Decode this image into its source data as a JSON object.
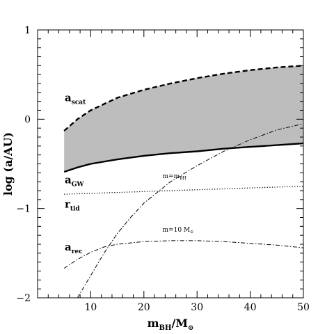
{
  "chart_data": {
    "type": "line",
    "xlabel": {
      "main": "m",
      "sub": "BH",
      "rest": "/M",
      "sub2": "⊙"
    },
    "ylabel": "log (a/AU)",
    "xlim": [
      0,
      50
    ],
    "ylim": [
      -2,
      1
    ],
    "x_ticks": [
      "10",
      "20",
      "30",
      "40",
      "50"
    ],
    "y_ticks": [
      "1",
      "0",
      "−1",
      "−2"
    ],
    "grid": false,
    "shaded_region": {
      "between": [
        "a_scat",
        "a_GW"
      ],
      "color": "#bdbdbd"
    },
    "series": [
      {
        "key": "a_scat",
        "label": {
          "main": "a",
          "sub": "scat"
        },
        "style": "dashed-thick",
        "x": [
          5,
          7.5,
          10,
          15,
          20,
          25,
          30,
          35,
          40,
          45,
          50
        ],
        "y": [
          -0.13,
          0.0,
          0.1,
          0.24,
          0.33,
          0.4,
          0.46,
          0.51,
          0.55,
          0.58,
          0.6
        ]
      },
      {
        "key": "a_GW",
        "label": {
          "main": "a",
          "sub": "GW"
        },
        "style": "solid-thick",
        "x": [
          5,
          7.5,
          10,
          15,
          20,
          25,
          30,
          35,
          40,
          45,
          50
        ],
        "y": [
          -0.59,
          -0.54,
          -0.5,
          -0.45,
          -0.41,
          -0.38,
          -0.36,
          -0.33,
          -0.31,
          -0.29,
          -0.27
        ]
      },
      {
        "key": "r_tid",
        "label": {
          "main": "r",
          "sub": "tid"
        },
        "style": "dotted",
        "x": [
          5,
          10,
          15,
          20,
          25,
          30,
          35,
          40,
          45,
          50
        ],
        "y": [
          -0.84,
          -0.83,
          -0.82,
          -0.81,
          -0.8,
          -0.79,
          -0.78,
          -0.77,
          -0.76,
          -0.75
        ]
      },
      {
        "key": "a_rec",
        "label": {
          "main": "a",
          "sub": "rec"
        },
        "annotation": {
          "main": "m=10 M",
          "sub": "⊙"
        },
        "style": "dash-dot",
        "x": [
          5,
          7.5,
          10,
          12.5,
          15,
          20,
          25,
          30,
          35,
          40,
          45,
          50
        ],
        "y": [
          -1.67,
          -1.57,
          -1.49,
          -1.43,
          -1.4,
          -1.37,
          -1.36,
          -1.36,
          -1.37,
          -1.39,
          -1.41,
          -1.44
        ]
      },
      {
        "key": "m_eq_mBH",
        "annotation": {
          "main": "m=m",
          "sub": "BH"
        },
        "style": "dash-dot",
        "x": [
          7.5,
          10,
          12.5,
          15,
          17.5,
          20,
          25,
          30,
          35,
          40,
          45,
          50
        ],
        "y": [
          -2.0,
          -1.75,
          -1.5,
          -1.28,
          -1.1,
          -0.94,
          -0.7,
          -0.52,
          -0.36,
          -0.23,
          -0.12,
          -0.05
        ]
      }
    ]
  }
}
